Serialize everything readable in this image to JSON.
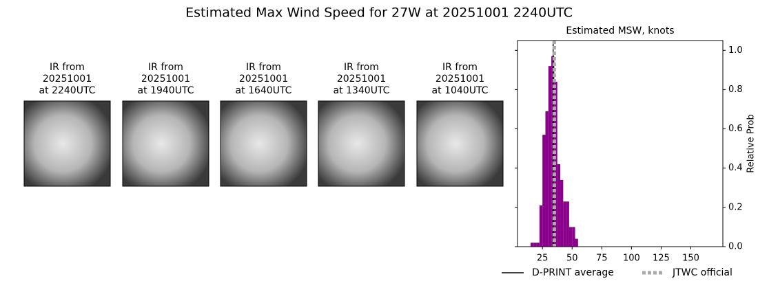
{
  "title": "Estimated Max Wind Speed for 27W at 20251001 2240UTC",
  "panels": [
    {
      "lines": [
        "IR from",
        "20251001",
        "at 2240UTC"
      ]
    },
    {
      "lines": [
        "IR from",
        "20251001",
        "at 1940UTC"
      ]
    },
    {
      "lines": [
        "IR from",
        "20251001",
        "at 1640UTC"
      ]
    },
    {
      "lines": [
        "IR from",
        "20251001",
        "at 1340UTC"
      ]
    },
    {
      "lines": [
        "IR from",
        "20251001",
        "at 1040UTC"
      ]
    }
  ],
  "chart_data": {
    "type": "histogram",
    "title": "Estimated MSW, knots",
    "ylabel": "Relative Prob",
    "color": "#8b008b",
    "bins": [
      15,
      17.5,
      20,
      22.5,
      25,
      27.5,
      30,
      32.5,
      35,
      37.5,
      40,
      42.5,
      45,
      47.5,
      50,
      52.5,
      55
    ],
    "values": [
      0.02,
      0.02,
      0.02,
      0.21,
      0.57,
      0.69,
      0.92,
      0.97,
      0.84,
      0.42,
      0.34,
      0.23,
      0.23,
      0.1,
      0.1,
      0.04
    ],
    "xlim": [
      4,
      177
    ],
    "xticks": [
      25,
      50,
      75,
      100,
      125,
      150
    ],
    "ylim": [
      0,
      1.05
    ],
    "yticks": [
      {
        "value": 0,
        "label": "0.0"
      },
      {
        "value": 0.2,
        "label": "0.2"
      },
      {
        "value": 0.4,
        "label": "0.4"
      },
      {
        "value": 0.6,
        "label": "0.6"
      },
      {
        "value": 0.8,
        "label": "0.8"
      },
      {
        "value": 1,
        "label": "1.0"
      }
    ],
    "reference_lines": [
      {
        "name": "D-PRINT average",
        "value": 34,
        "color": "#000000",
        "style": "solid"
      },
      {
        "name": "JTWC official",
        "value": 35,
        "color": "#aaaaaa",
        "style": "dotted"
      }
    ]
  }
}
